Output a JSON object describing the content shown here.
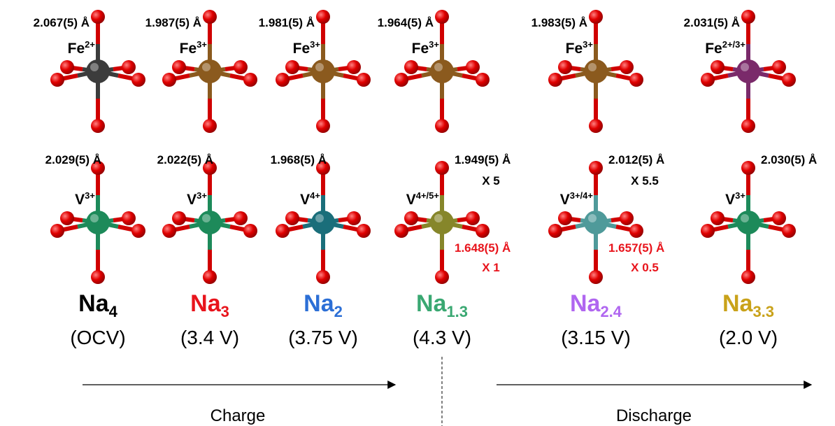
{
  "columns": [
    {
      "fe_bond": "2.067(5) Å",
      "fe_ion": {
        "element": "Fe",
        "charge": "2+"
      },
      "fe_color": "#3c3c3c",
      "v_bond": "2.029(5) Å",
      "v_ion": {
        "element": "V",
        "charge": "3+"
      },
      "v_color": "#1d8a5a",
      "formula": {
        "base": "Na",
        "sub": "4"
      },
      "formula_color": "#000000",
      "voltage": "(OCV)"
    },
    {
      "fe_bond": "1.987(5) Å",
      "fe_ion": {
        "element": "Fe",
        "charge": "3+"
      },
      "fe_color": "#8b5a1e",
      "v_bond": "2.022(5) Å",
      "v_ion": {
        "element": "V",
        "charge": "3+"
      },
      "v_color": "#1d8a5a",
      "formula": {
        "base": "Na",
        "sub": "3"
      },
      "formula_color": "#e8141c",
      "voltage": "(3.4 V)"
    },
    {
      "fe_bond": "1.981(5) Å",
      "fe_ion": {
        "element": "Fe",
        "charge": "3+"
      },
      "fe_color": "#8b5a1e",
      "v_bond": "1.968(5) Å",
      "v_ion": {
        "element": "V",
        "charge": "4+"
      },
      "v_color": "#1a6e7a",
      "formula": {
        "base": "Na",
        "sub": "2"
      },
      "formula_color": "#2c6fd6",
      "voltage": "(3.75 V)"
    },
    {
      "fe_bond": "1.964(5) Å",
      "fe_ion": {
        "element": "Fe",
        "charge": "3+"
      },
      "fe_color": "#8b5a1e",
      "v_bond": "1.949(5) Å",
      "v_bond_count": "X 5",
      "v_short_bond": "1.648(5) Å",
      "v_short_count": "X 1",
      "v_ion": {
        "element": "V",
        "charge": "4+/5+"
      },
      "v_color": "#86862a",
      "formula": {
        "base": "Na",
        "sub": "1.3"
      },
      "formula_color": "#3aa872",
      "voltage": "(4.3 V)"
    },
    {
      "fe_bond": "1.983(5) Å",
      "fe_ion": {
        "element": "Fe",
        "charge": "3+"
      },
      "fe_color": "#8b5a1e",
      "v_bond": "2.012(5) Å",
      "v_bond_count": "X 5.5",
      "v_short_bond": "1.657(5) Å",
      "v_short_count": "X 0.5",
      "v_ion": {
        "element": "V",
        "charge": "3+/4+"
      },
      "v_color": "#4f9a9a",
      "formula": {
        "base": "Na",
        "sub": "2.4"
      },
      "formula_color": "#b066f0",
      "voltage": "(3.15 V)"
    },
    {
      "fe_bond": "2.031(5) Å",
      "fe_ion": {
        "element": "Fe",
        "charge": "2+/3+"
      },
      "fe_color": "#7a2a6a",
      "v_bond": "2.030(5) Å",
      "v_ion": {
        "element": "V",
        "charge": "3+"
      },
      "v_color": "#1d8a5a",
      "formula": {
        "base": "Na",
        "sub": "3.3"
      },
      "formula_color": "#c9a21a",
      "voltage": "(2.0 V)"
    }
  ],
  "arrows": {
    "charge": "Charge",
    "discharge": "Discharge"
  }
}
